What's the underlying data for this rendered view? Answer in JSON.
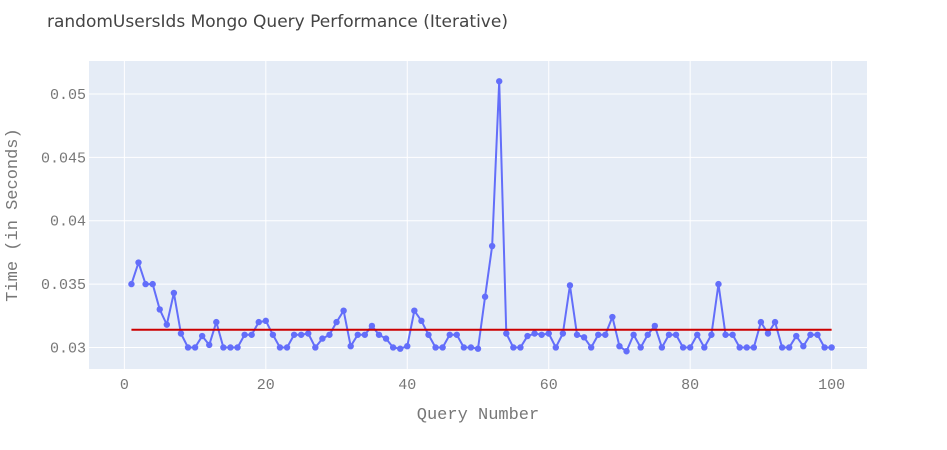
{
  "chart_data": {
    "type": "line",
    "title": "randomUsersIds Mongo Query Performance (Iterative)",
    "xlabel": "Query Number",
    "ylabel": "Time (in Seconds)",
    "xlim": [
      -5,
      105
    ],
    "ylim": [
      0.0283,
      0.0526
    ],
    "x_ticks": [
      0,
      20,
      40,
      60,
      80,
      100
    ],
    "y_ticks": [
      0.03,
      0.035,
      0.04,
      0.045,
      0.05
    ],
    "x_tick_labels": [
      "0",
      "20",
      "40",
      "60",
      "80",
      "100"
    ],
    "y_tick_labels": [
      "0.03",
      "0.035",
      "0.04",
      "0.045",
      "0.05"
    ],
    "grid": true,
    "legend": "none",
    "series": [
      {
        "color": "#636efa",
        "x": [
          1,
          2,
          3,
          4,
          5,
          6,
          7,
          8,
          9,
          10,
          11,
          12,
          13,
          14,
          15,
          16,
          17,
          18,
          19,
          20,
          21,
          22,
          23,
          24,
          25,
          26,
          27,
          28,
          29,
          30,
          31,
          32,
          33,
          34,
          35,
          36,
          37,
          38,
          39,
          40,
          41,
          42,
          43,
          44,
          45,
          46,
          47,
          48,
          49,
          50,
          51,
          52,
          53,
          54,
          55,
          56,
          57,
          58,
          59,
          60,
          61,
          62,
          63,
          64,
          65,
          66,
          67,
          68,
          69,
          70,
          71,
          72,
          73,
          74,
          75,
          76,
          77,
          78,
          79,
          80,
          81,
          82,
          83,
          84,
          85,
          86,
          87,
          88,
          89,
          90,
          91,
          92,
          93,
          94,
          95,
          96,
          97,
          98,
          99,
          100
        ],
        "values": [
          0.035,
          0.0367,
          0.035,
          0.035,
          0.033,
          0.0318,
          0.0343,
          0.0311,
          0.03,
          0.03,
          0.0309,
          0.0302,
          0.032,
          0.03,
          0.03,
          0.03,
          0.031,
          0.031,
          0.032,
          0.0321,
          0.031,
          0.03,
          0.03,
          0.031,
          0.031,
          0.0311,
          0.03,
          0.0307,
          0.031,
          0.032,
          0.0329,
          0.0301,
          0.031,
          0.031,
          0.0317,
          0.031,
          0.0307,
          0.03,
          0.0299,
          0.0301,
          0.0329,
          0.0321,
          0.031,
          0.03,
          0.03,
          0.031,
          0.031,
          0.03,
          0.03,
          0.0299,
          0.034,
          0.038,
          0.051,
          0.0311,
          0.03,
          0.03,
          0.0309,
          0.0311,
          0.031,
          0.0311,
          0.03,
          0.0311,
          0.0349,
          0.031,
          0.0308,
          0.03,
          0.031,
          0.031,
          0.0324,
          0.0301,
          0.0297,
          0.031,
          0.03,
          0.031,
          0.0317,
          0.03,
          0.031,
          0.031,
          0.03,
          0.03,
          0.031,
          0.03,
          0.031,
          0.035,
          0.031,
          0.031,
          0.03,
          0.03,
          0.03,
          0.032,
          0.0311,
          0.032,
          0.03,
          0.03,
          0.0309,
          0.0301,
          0.031,
          0.031,
          0.03,
          0.03
        ]
      },
      {
        "color": "#cc0000",
        "x": [
          1,
          100
        ],
        "values": [
          0.0314,
          0.0314
        ]
      }
    ]
  }
}
